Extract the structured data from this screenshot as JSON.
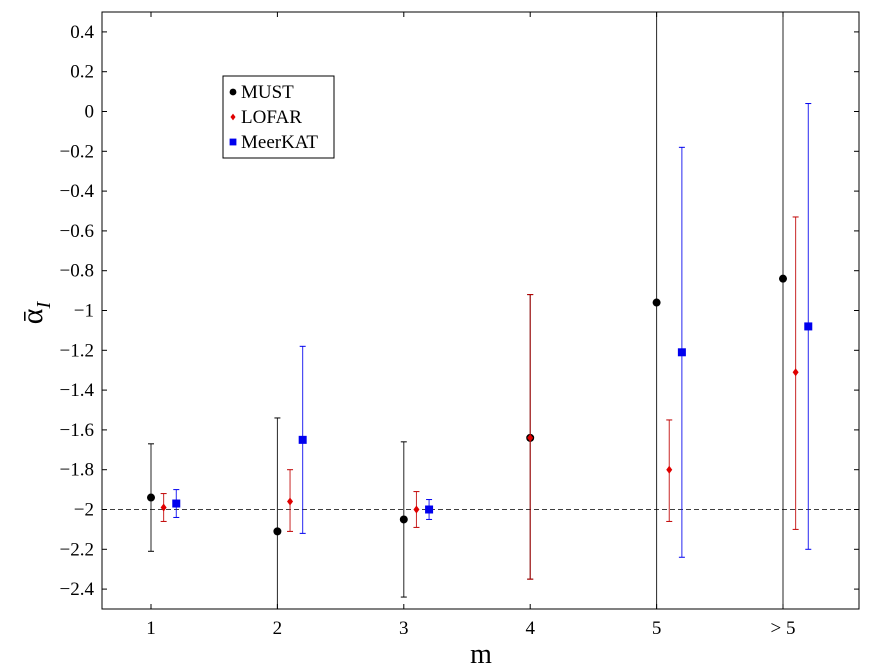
{
  "chart_data": {
    "type": "scatter",
    "xlabel": "m",
    "ylabel": "ᾱ",
    "ylabel_subscript": "I",
    "categories": [
      "1",
      "2",
      "3",
      "4",
      "5",
      "> 5"
    ],
    "ylim": [
      -2.5,
      0.5
    ],
    "yticks": [
      0.4,
      0.2,
      0,
      -0.2,
      -0.4,
      -0.6,
      -0.8,
      -1,
      -1.2,
      -1.4,
      -1.6,
      -1.8,
      -2,
      -2.2,
      -2.4
    ],
    "ytick_labels": [
      "0.4",
      "0.2",
      "0",
      "−0.2",
      "−0.4",
      "−0.6",
      "−0.8",
      "−1",
      "−1.2",
      "−1.4",
      "−1.6",
      "−1.8",
      "−2",
      "−2.2",
      "−2.4"
    ],
    "reference_line": {
      "y": -2.0,
      "style": "dashed"
    },
    "grid": false,
    "legend": {
      "position": "top-left"
    },
    "series": [
      {
        "name": "MUST",
        "marker": "circle",
        "color": "#000000",
        "errcolor": "#000000",
        "x": [
          1,
          2,
          3,
          4,
          5,
          6
        ],
        "values": [
          -1.94,
          -2.11,
          -2.05,
          -1.64,
          -0.96,
          -0.84
        ],
        "err_low": [
          -2.21,
          -2.5,
          -2.44,
          -2.35,
          -2.5,
          -2.5
        ],
        "err_high": [
          -1.67,
          -1.54,
          -1.66,
          -0.92,
          0.5,
          0.5
        ]
      },
      {
        "name": "LOFAR",
        "marker": "diamond",
        "color": "#e00000",
        "errcolor": "#c00000",
        "x": [
          1.1,
          2.1,
          3.1,
          4,
          5.1,
          6.1
        ],
        "values": [
          -1.99,
          -1.96,
          -2.0,
          -1.64,
          -1.8,
          -1.31
        ],
        "err_low": [
          -2.06,
          -2.11,
          -2.09,
          -2.35,
          -2.06,
          -2.1
        ],
        "err_high": [
          -1.92,
          -1.8,
          -1.91,
          -0.92,
          -1.55,
          -0.53
        ]
      },
      {
        "name": "MeerKAT",
        "marker": "square",
        "color": "#0000ee",
        "errcolor": "#0000ee",
        "x": [
          1.2,
          2.2,
          3.2,
          null,
          5.2,
          6.2
        ],
        "values": [
          -1.97,
          -1.65,
          -2.0,
          null,
          -1.21,
          -1.08
        ],
        "err_low": [
          -2.04,
          -2.12,
          -2.05,
          null,
          -2.24,
          -2.2
        ],
        "err_high": [
          -1.9,
          -1.18,
          -1.95,
          null,
          -0.18,
          0.04
        ]
      }
    ]
  }
}
